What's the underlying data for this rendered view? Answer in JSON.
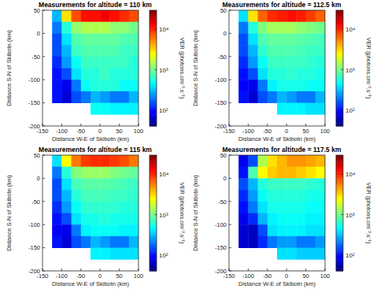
{
  "chart_data": [
    {
      "type": "heatmap",
      "title": "Measurements for altitude = 110 km",
      "x_label": "Distance W-E of Skibotn (km)",
      "y_label": "Distance S-N of Skibotn (km)",
      "xlim": [
        -150,
        100
      ],
      "xticks": [
        -150,
        -100,
        -50,
        0,
        50,
        100
      ],
      "ylim": [
        -200,
        50
      ],
      "yticks": [
        -200,
        -150,
        -100,
        -50,
        0,
        50
      ],
      "x": [
        -112.5,
        -87.5,
        -62.5,
        -37.5,
        -12.5,
        12.5,
        37.5,
        62.5,
        87.5
      ],
      "y": [
        37.5,
        12.5,
        -12.5,
        -37.5,
        -62.5,
        -87.5,
        -112.5,
        -137.5,
        -162.5
      ],
      "values": [
        [
          300,
          3000,
          8000,
          12000,
          12000,
          14000,
          12000,
          10000,
          8000
        ],
        [
          200,
          600,
          1200,
          1500,
          1500,
          1500,
          1200,
          1200,
          1000
        ],
        [
          150,
          400,
          800,
          900,
          900,
          900,
          900,
          800,
          800
        ],
        [
          150,
          300,
          700,
          800,
          800,
          800,
          800,
          700,
          700
        ],
        [
          120,
          250,
          500,
          700,
          700,
          700,
          700,
          700,
          600
        ],
        [
          100,
          150,
          400,
          600,
          600,
          700,
          600,
          600,
          600
        ],
        [
          100,
          80,
          200,
          500,
          600,
          600,
          600,
          500,
          500
        ],
        [
          100,
          70,
          150,
          200,
          300,
          250,
          200,
          200,
          300
        ],
        [
          null,
          null,
          null,
          null,
          500,
          500,
          450,
          450,
          450
        ]
      ],
      "log": true,
      "colorbar_range": [
        40,
        30000
      ],
      "colorbar_ticks": [
        {
          "value": 100,
          "label": "10²"
        },
        {
          "value": 1000,
          "label": "10³"
        },
        {
          "value": 10000,
          "label": "10⁴"
        }
      ],
      "colorbar_label": "VER (photons.cm⁻³.s⁻¹)"
    },
    {
      "type": "heatmap",
      "title": "Measurements for altitude = 112.5 km",
      "x_label": "Distance W-E of Skibotn (km)",
      "y_label": "Distance S-N of Skibotn (km)",
      "xlim": [
        -150,
        100
      ],
      "xticks": [
        -150,
        -100,
        -50,
        0,
        50,
        100
      ],
      "ylim": [
        -200,
        50
      ],
      "yticks": [
        -200,
        -150,
        -100,
        -50,
        0,
        50
      ],
      "x": [
        -112.5,
        -87.5,
        -62.5,
        -37.5,
        -12.5,
        12.5,
        37.5,
        62.5,
        87.5
      ],
      "y": [
        37.5,
        12.5,
        -12.5,
        -37.5,
        -62.5,
        -87.5,
        -112.5,
        -137.5,
        -162.5
      ],
      "values": [
        [
          400,
          3000,
          7000,
          10000,
          11000,
          12000,
          11000,
          9000,
          7000
        ],
        [
          200,
          600,
          1100,
          1400,
          1400,
          1400,
          1200,
          1100,
          1000
        ],
        [
          150,
          400,
          800,
          900,
          900,
          900,
          850,
          800,
          750
        ],
        [
          150,
          300,
          650,
          800,
          800,
          800,
          750,
          700,
          700
        ],
        [
          120,
          250,
          500,
          700,
          700,
          700,
          700,
          650,
          600
        ],
        [
          100,
          150,
          400,
          600,
          600,
          650,
          600,
          600,
          550
        ],
        [
          90,
          80,
          200,
          450,
          550,
          550,
          550,
          500,
          500
        ],
        [
          100,
          70,
          150,
          200,
          300,
          250,
          200,
          200,
          300
        ],
        [
          null,
          null,
          null,
          null,
          450,
          450,
          450,
          400,
          400
        ]
      ],
      "log": true,
      "colorbar_range": [
        40,
        30000
      ],
      "colorbar_ticks": [
        {
          "value": 100,
          "label": "10²"
        },
        {
          "value": 1000,
          "label": "10³"
        },
        {
          "value": 10000,
          "label": "10⁴"
        }
      ],
      "colorbar_label": "VER (photons.cm⁻³.s⁻¹)"
    },
    {
      "type": "heatmap",
      "title": "Measurements for altitude = 115 km",
      "x_label": "Distance W-E of Skibotn (km)",
      "y_label": "Distance S-N of Skibotn (km)",
      "xlim": [
        -150,
        100
      ],
      "xticks": [
        -150,
        -100,
        -50,
        0,
        50,
        100
      ],
      "ylim": [
        -200,
        50
      ],
      "yticks": [
        -200,
        -150,
        -100,
        -50,
        0,
        50
      ],
      "x": [
        -112.5,
        -87.5,
        -62.5,
        -37.5,
        -12.5,
        12.5,
        37.5,
        62.5,
        87.5
      ],
      "y": [
        37.5,
        12.5,
        -12.5,
        -37.5,
        -62.5,
        -87.5,
        -112.5,
        -137.5,
        -162.5
      ],
      "values": [
        [
          400,
          2500,
          6000,
          9000,
          10000,
          10000,
          9000,
          8000,
          6000
        ],
        [
          200,
          600,
          1100,
          1300,
          1300,
          1300,
          1100,
          1000,
          900
        ],
        [
          150,
          400,
          750,
          850,
          850,
          850,
          800,
          750,
          700
        ],
        [
          150,
          300,
          600,
          750,
          750,
          750,
          700,
          700,
          650
        ],
        [
          120,
          250,
          500,
          650,
          650,
          650,
          650,
          600,
          600
        ],
        [
          100,
          150,
          400,
          550,
          550,
          600,
          550,
          550,
          550
        ],
        [
          90,
          80,
          200,
          450,
          500,
          500,
          500,
          450,
          450
        ],
        [
          100,
          70,
          150,
          200,
          300,
          250,
          200,
          200,
          300
        ],
        [
          null,
          null,
          null,
          null,
          450,
          450,
          400,
          400,
          400
        ]
      ],
      "log": true,
      "colorbar_range": [
        40,
        30000
      ],
      "colorbar_ticks": [
        {
          "value": 100,
          "label": "10²"
        },
        {
          "value": 1000,
          "label": "10³"
        },
        {
          "value": 10000,
          "label": "10⁴"
        }
      ],
      "colorbar_label": "VER (photons.cm⁻³.s⁻¹)"
    },
    {
      "type": "heatmap",
      "title": "Measurements for altitude = 117.5 km",
      "x_label": "Distance W-E of Skibotn (km)",
      "y_label": "Distance S-N of Skibotn (km)",
      "xlim": [
        -150,
        100
      ],
      "xticks": [
        -150,
        -100,
        -50,
        0,
        50,
        100
      ],
      "ylim": [
        -200,
        50
      ],
      "yticks": [
        -200,
        -150,
        -100,
        -50,
        0,
        50
      ],
      "x": [
        -112.5,
        -87.5,
        -62.5,
        -37.5,
        -12.5,
        12.5,
        37.5,
        62.5,
        87.5
      ],
      "y": [
        37.5,
        12.5,
        -12.5,
        -37.5,
        -62.5,
        -87.5,
        -112.5,
        -137.5,
        -162.5
      ],
      "values": [
        [
          80,
          150,
          1500,
          3000,
          4000,
          5000,
          5000,
          4500,
          4000
        ],
        [
          100,
          800,
          2500,
          3500,
          4000,
          4000,
          3500,
          3000,
          2500
        ],
        [
          150,
          300,
          600,
          700,
          700,
          700,
          700,
          650,
          600
        ],
        [
          120,
          250,
          500,
          600,
          600,
          600,
          600,
          550,
          550
        ],
        [
          100,
          200,
          400,
          550,
          550,
          550,
          550,
          500,
          500
        ],
        [
          80,
          120,
          300,
          450,
          500,
          500,
          500,
          450,
          450
        ],
        [
          70,
          60,
          150,
          400,
          450,
          450,
          450,
          400,
          400
        ],
        [
          70,
          60,
          120,
          200,
          250,
          250,
          200,
          200,
          250
        ],
        [
          null,
          null,
          null,
          null,
          400,
          400,
          350,
          350,
          350
        ]
      ],
      "log": true,
      "colorbar_range": [
        40,
        30000
      ],
      "colorbar_ticks": [
        {
          "value": 100,
          "label": "10²"
        },
        {
          "value": 1000,
          "label": "10³"
        },
        {
          "value": 10000,
          "label": "10⁴"
        }
      ],
      "colorbar_label": "VER (photons.cm⁻³.s⁻¹)"
    }
  ]
}
